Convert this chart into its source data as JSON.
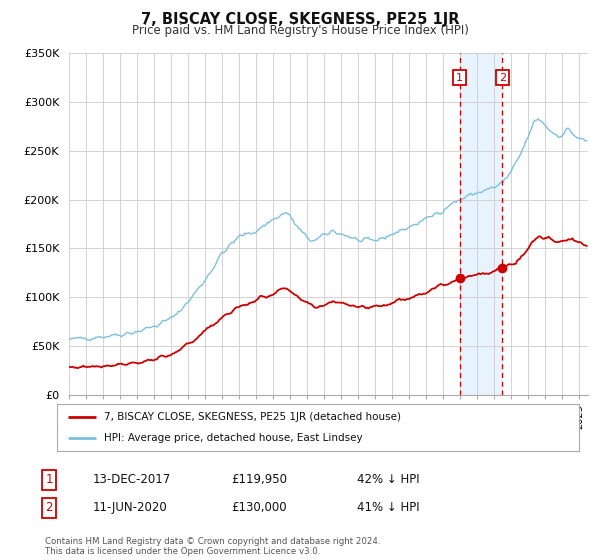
{
  "title": "7, BISCAY CLOSE, SKEGNESS, PE25 1JR",
  "subtitle": "Price paid vs. HM Land Registry's House Price Index (HPI)",
  "ylim": [
    0,
    350000
  ],
  "xlim_start": 1995.0,
  "xlim_end": 2025.5,
  "background_color": "#ffffff",
  "plot_bg_color": "#ffffff",
  "grid_color": "#cccccc",
  "hpi_color": "#7fbfdf",
  "price_color": "#cc0000",
  "sale1_date": 2017.958,
  "sale1_price": 119950,
  "sale1_label": "1",
  "sale1_text": "13-DEC-2017",
  "sale1_amount": "£119,950",
  "sale1_note": "42% ↓ HPI",
  "sale2_date": 2020.458,
  "sale2_price": 130000,
  "sale2_label": "2",
  "sale2_text": "11-JUN-2020",
  "sale2_amount": "£130,000",
  "sale2_note": "41% ↓ HPI",
  "shade_color": "#ddeeff",
  "legend_label1": "7, BISCAY CLOSE, SKEGNESS, PE25 1JR (detached house)",
  "legend_label2": "HPI: Average price, detached house, East Lindsey",
  "footer1": "Contains HM Land Registry data © Crown copyright and database right 2024.",
  "footer2": "This data is licensed under the Open Government Licence v3.0.",
  "yticks": [
    0,
    50000,
    100000,
    150000,
    200000,
    250000,
    300000,
    350000
  ],
  "ytick_labels": [
    "£0",
    "£50K",
    "£100K",
    "£150K",
    "£200K",
    "£250K",
    "£300K",
    "£350K"
  ]
}
